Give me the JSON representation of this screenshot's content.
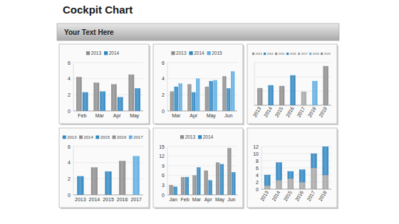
{
  "title": "Cockpit Chart",
  "subtitle": "Your Text Here",
  "chart_data": [
    {
      "type": "bar",
      "categories": [
        "Feb",
        "Mar",
        "Apr",
        "May"
      ],
      "series": [
        {
          "name": "2013",
          "color": "#8c8c8c",
          "values": [
            4.2,
            3.5,
            3.3,
            4.5
          ]
        },
        {
          "name": "2014",
          "color": "#2e86c1",
          "values": [
            2.3,
            2.4,
            1.7,
            2.8
          ]
        }
      ],
      "ylim": [
        0,
        6
      ],
      "yticks": [
        0,
        2,
        4,
        6
      ],
      "grid": true,
      "legend": "top"
    },
    {
      "type": "bar",
      "categories": [
        "Mar",
        "Apr",
        "May",
        "Jun"
      ],
      "series": [
        {
          "name": "2013",
          "color": "#8c8c8c",
          "values": [
            2.4,
            3.3,
            3.0,
            4.3
          ]
        },
        {
          "name": "2014",
          "color": "#2e86c1",
          "values": [
            3.0,
            2.3,
            3.7,
            2.8
          ]
        },
        {
          "name": "2015",
          "color": "#5dade2",
          "values": [
            3.4,
            4.0,
            3.8,
            4.9
          ]
        }
      ],
      "ylim": [
        0,
        6
      ],
      "yticks": [
        0,
        2,
        4,
        6
      ],
      "grid": true,
      "legend": "top"
    },
    {
      "type": "bar",
      "categories": [
        "2013",
        "2014",
        "2015",
        "2016",
        "2017",
        "2018",
        "2019"
      ],
      "values": [
        2.4,
        2.8,
        2.7,
        4.2,
        1.9,
        3.4,
        5.5
      ],
      "colors": [
        "#8c8c8c",
        "#2e86c1",
        "#8c8c8c",
        "#2e86c1",
        "#a6a6a6",
        "#5dade2",
        "#8c8c8c"
      ],
      "ylim": [
        0,
        6
      ],
      "yticks": [
        0,
        2,
        4,
        6
      ],
      "grid": true,
      "legend": "top",
      "tick_labels": "x"
    },
    {
      "type": "bar",
      "categories": [
        "2013",
        "2014",
        "2015",
        "2016",
        "2017"
      ],
      "values": [
        2.3,
        3.4,
        2.9,
        4.2,
        4.8
      ],
      "colors": [
        "#2e86c1",
        "#8c8c8c",
        "#2e86c1",
        "#8c8c8c",
        "#5dade2"
      ],
      "ylim": [
        0,
        6
      ],
      "yticks": [
        0,
        2,
        4,
        6
      ],
      "grid": true,
      "legend": "top"
    },
    {
      "type": "bar",
      "categories": [
        "Jan",
        "Feb",
        "Mar",
        "Apr",
        "May",
        "Jun"
      ],
      "series": [
        {
          "name": "2013",
          "color": "#8c8c8c",
          "values": [
            3,
            5.5,
            6,
            7.5,
            10,
            14.5
          ]
        },
        {
          "name": "2014",
          "color": "#2e86c1",
          "values": [
            2.5,
            5.5,
            8.5,
            4.5,
            9.5,
            7
          ]
        }
      ],
      "ylim": [
        0,
        15
      ],
      "yticks": [
        0,
        3,
        6,
        9,
        12,
        15
      ],
      "grid": true,
      "legend": "top"
    },
    {
      "type": "bar",
      "stacked": true,
      "categories": [
        "2013",
        "2014",
        "2015",
        "2016",
        "2017",
        "2018"
      ],
      "series": [
        {
          "color": "#a6a6a6",
          "values": [
            1,
            2.5,
            3,
            2,
            6,
            4
          ]
        },
        {
          "color": "#2e86c1",
          "values": [
            3,
            5,
            2,
            3.5,
            4,
            8
          ]
        }
      ],
      "ylim": [
        0,
        12
      ],
      "yticks": [
        0,
        2,
        4,
        6,
        8,
        10,
        12
      ],
      "grid": true
    }
  ]
}
